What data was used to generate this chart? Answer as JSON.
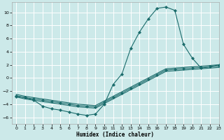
{
  "xlabel": "Humidex (Indice chaleur)",
  "bg_color": "#cce9e9",
  "grid_color": "#ffffff",
  "line_color": "#1a6b6b",
  "xlim": [
    -0.5,
    23
  ],
  "ylim": [
    -7,
    11.5
  ],
  "xticks": [
    0,
    1,
    2,
    3,
    4,
    5,
    6,
    7,
    8,
    9,
    10,
    11,
    12,
    13,
    14,
    15,
    16,
    17,
    18,
    19,
    20,
    21,
    22,
    23
  ],
  "yticks": [
    -6,
    -4,
    -2,
    0,
    2,
    4,
    6,
    8,
    10
  ],
  "series": [
    {
      "x": [
        0,
        1,
        2,
        3,
        4,
        5,
        6,
        7,
        8,
        9,
        10,
        11,
        12,
        13,
        14,
        15,
        16,
        17,
        18,
        19,
        20,
        21,
        22,
        23
      ],
      "y": [
        -2.8,
        -3.0,
        -3.4,
        -4.3,
        -4.7,
        -4.9,
        -5.2,
        -5.5,
        -5.7,
        -5.5,
        -4.0,
        -1.0,
        0.6,
        4.5,
        7.0,
        9.0,
        10.6,
        10.8,
        10.3,
        5.1,
        3.0,
        1.5,
        1.7,
        2.0
      ],
      "marker": "D",
      "markersize": 2.2
    },
    {
      "x": [
        0,
        1,
        2,
        3,
        4,
        5,
        6,
        7,
        8,
        9,
        10,
        11,
        12,
        13,
        14,
        15,
        16,
        17,
        18,
        19,
        20,
        21,
        22,
        23
      ],
      "y": [
        -2.5,
        -2.8,
        -3.0,
        -3.2,
        -3.4,
        -3.6,
        -3.8,
        -4.0,
        -4.1,
        -4.2,
        -3.5,
        -2.8,
        -2.1,
        -1.4,
        -0.7,
        0.0,
        0.7,
        1.4,
        1.5,
        1.6,
        1.7,
        1.8,
        1.9,
        2.0
      ],
      "marker": null,
      "markersize": 0
    },
    {
      "x": [
        0,
        1,
        2,
        3,
        4,
        5,
        6,
        7,
        8,
        9,
        10,
        11,
        12,
        13,
        14,
        15,
        16,
        17,
        18,
        19,
        20,
        21,
        22,
        23
      ],
      "y": [
        -2.7,
        -3.0,
        -3.2,
        -3.4,
        -3.6,
        -3.8,
        -4.0,
        -4.2,
        -4.3,
        -4.4,
        -3.7,
        -3.0,
        -2.3,
        -1.6,
        -0.9,
        -0.2,
        0.5,
        1.2,
        1.3,
        1.4,
        1.5,
        1.6,
        1.7,
        1.8
      ],
      "marker": "D",
      "markersize": 2.2
    },
    {
      "x": [
        0,
        1,
        2,
        3,
        4,
        5,
        6,
        7,
        8,
        9,
        10,
        11,
        12,
        13,
        14,
        15,
        16,
        17,
        18,
        19,
        20,
        21,
        22,
        23
      ],
      "y": [
        -2.9,
        -3.2,
        -3.4,
        -3.6,
        -3.8,
        -4.0,
        -4.2,
        -4.4,
        -4.5,
        -4.6,
        -3.9,
        -3.2,
        -2.5,
        -1.8,
        -1.1,
        -0.4,
        0.3,
        1.0,
        1.1,
        1.2,
        1.3,
        1.4,
        1.5,
        1.6
      ],
      "marker": null,
      "markersize": 0
    }
  ]
}
